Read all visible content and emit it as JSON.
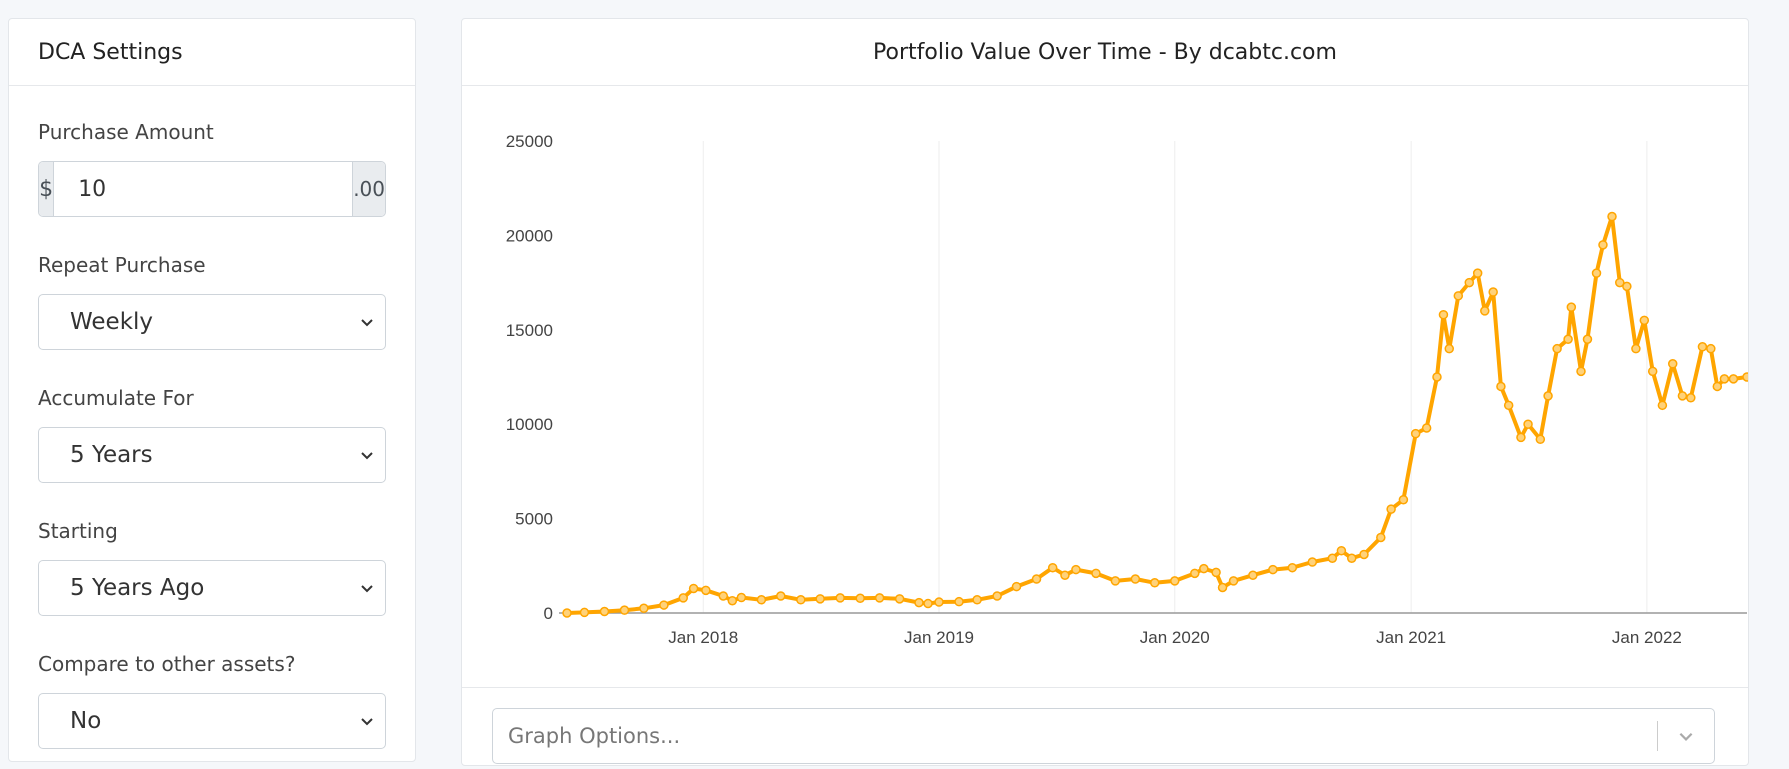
{
  "settings": {
    "title": "DCA Settings",
    "purchase_amount": {
      "label": "Purchase Amount",
      "prefix": "$",
      "value": "10",
      "suffix": ".00"
    },
    "repeat": {
      "label": "Repeat Purchase",
      "selected": "Weekly"
    },
    "accumulate": {
      "label": "Accumulate For",
      "selected": "5 Years"
    },
    "starting": {
      "label": "Starting",
      "selected": "5 Years Ago"
    },
    "compare": {
      "label": "Compare to other assets?",
      "selected": "No"
    }
  },
  "chart_panel": {
    "title": "Portfolio Value Over Time - By dcabtc.com",
    "graph_options_placeholder": "Graph Options..."
  },
  "colors": {
    "line": "#ffa500",
    "grid": "#eeeeee",
    "axis": "#999999",
    "tick_text": "#444444"
  },
  "chart_data": {
    "type": "line",
    "title": "",
    "xlabel": "",
    "ylabel": "",
    "x_start": "2017-06-04",
    "x_end": "2022-06-05",
    "xticks": [
      {
        "label": "Jan 2018",
        "date": "2018-01-01"
      },
      {
        "label": "Jan 2019",
        "date": "2019-01-01"
      },
      {
        "label": "Jan 2020",
        "date": "2020-01-01"
      },
      {
        "label": "Jan 2021",
        "date": "2021-01-01"
      },
      {
        "label": "Jan 2022",
        "date": "2022-01-01"
      }
    ],
    "ylim": [
      0,
      25000
    ],
    "yticks": [
      0,
      5000,
      10000,
      15000,
      20000,
      25000
    ],
    "grid": "vertical",
    "legend": "none",
    "series": [
      {
        "points": [
          [
            "2017-06-04",
            0
          ],
          [
            "2017-07-01",
            30
          ],
          [
            "2017-08-01",
            80
          ],
          [
            "2017-09-01",
            150
          ],
          [
            "2017-10-01",
            250
          ],
          [
            "2017-11-01",
            420
          ],
          [
            "2017-12-01",
            800
          ],
          [
            "2017-12-17",
            1300
          ],
          [
            "2018-01-05",
            1200
          ],
          [
            "2018-02-01",
            900
          ],
          [
            "2018-02-15",
            650
          ],
          [
            "2018-03-01",
            820
          ],
          [
            "2018-04-01",
            700
          ],
          [
            "2018-05-01",
            900
          ],
          [
            "2018-06-01",
            700
          ],
          [
            "2018-07-01",
            750
          ],
          [
            "2018-08-01",
            800
          ],
          [
            "2018-09-01",
            780
          ],
          [
            "2018-10-01",
            800
          ],
          [
            "2018-11-01",
            750
          ],
          [
            "2018-12-01",
            550
          ],
          [
            "2018-12-15",
            500
          ],
          [
            "2019-01-01",
            580
          ],
          [
            "2019-02-01",
            600
          ],
          [
            "2019-03-01",
            700
          ],
          [
            "2019-04-01",
            900
          ],
          [
            "2019-05-01",
            1400
          ],
          [
            "2019-06-01",
            1800
          ],
          [
            "2019-06-26",
            2400
          ],
          [
            "2019-07-15",
            2000
          ],
          [
            "2019-08-01",
            2300
          ],
          [
            "2019-09-01",
            2100
          ],
          [
            "2019-10-01",
            1700
          ],
          [
            "2019-11-01",
            1800
          ],
          [
            "2019-12-01",
            1600
          ],
          [
            "2020-01-01",
            1700
          ],
          [
            "2020-02-01",
            2100
          ],
          [
            "2020-02-15",
            2350
          ],
          [
            "2020-03-05",
            2150
          ],
          [
            "2020-03-15",
            1350
          ],
          [
            "2020-04-01",
            1700
          ],
          [
            "2020-05-01",
            2000
          ],
          [
            "2020-06-01",
            2300
          ],
          [
            "2020-07-01",
            2400
          ],
          [
            "2020-08-01",
            2700
          ],
          [
            "2020-09-01",
            2900
          ],
          [
            "2020-09-15",
            3300
          ],
          [
            "2020-10-01",
            2900
          ],
          [
            "2020-10-20",
            3100
          ],
          [
            "2020-11-15",
            4000
          ],
          [
            "2020-12-01",
            5500
          ],
          [
            "2020-12-20",
            6000
          ],
          [
            "2021-01-08",
            9500
          ],
          [
            "2021-01-25",
            9800
          ],
          [
            "2021-02-10",
            12500
          ],
          [
            "2021-02-20",
            15800
          ],
          [
            "2021-03-01",
            14000
          ],
          [
            "2021-03-15",
            16800
          ],
          [
            "2021-04-01",
            17500
          ],
          [
            "2021-04-14",
            18000
          ],
          [
            "2021-04-25",
            16000
          ],
          [
            "2021-05-08",
            17000
          ],
          [
            "2021-05-20",
            12000
          ],
          [
            "2021-06-01",
            11000
          ],
          [
            "2021-06-20",
            9300
          ],
          [
            "2021-07-01",
            10000
          ],
          [
            "2021-07-20",
            9200
          ],
          [
            "2021-08-01",
            11500
          ],
          [
            "2021-08-15",
            14000
          ],
          [
            "2021-09-01",
            14500
          ],
          [
            "2021-09-06",
            16200
          ],
          [
            "2021-09-21",
            12800
          ],
          [
            "2021-10-01",
            14500
          ],
          [
            "2021-10-15",
            18000
          ],
          [
            "2021-10-25",
            19500
          ],
          [
            "2021-11-08",
            21000
          ],
          [
            "2021-11-20",
            17500
          ],
          [
            "2021-12-01",
            17300
          ],
          [
            "2021-12-15",
            14000
          ],
          [
            "2021-12-28",
            15500
          ],
          [
            "2022-01-10",
            12800
          ],
          [
            "2022-01-25",
            11000
          ],
          [
            "2022-02-10",
            13200
          ],
          [
            "2022-02-25",
            11500
          ],
          [
            "2022-03-10",
            11400
          ],
          [
            "2022-03-28",
            14100
          ],
          [
            "2022-04-10",
            14000
          ],
          [
            "2022-04-20",
            12000
          ],
          [
            "2022-05-01",
            12400
          ],
          [
            "2022-05-15",
            12400
          ],
          [
            "2022-06-05",
            12500
          ]
        ]
      }
    ]
  }
}
